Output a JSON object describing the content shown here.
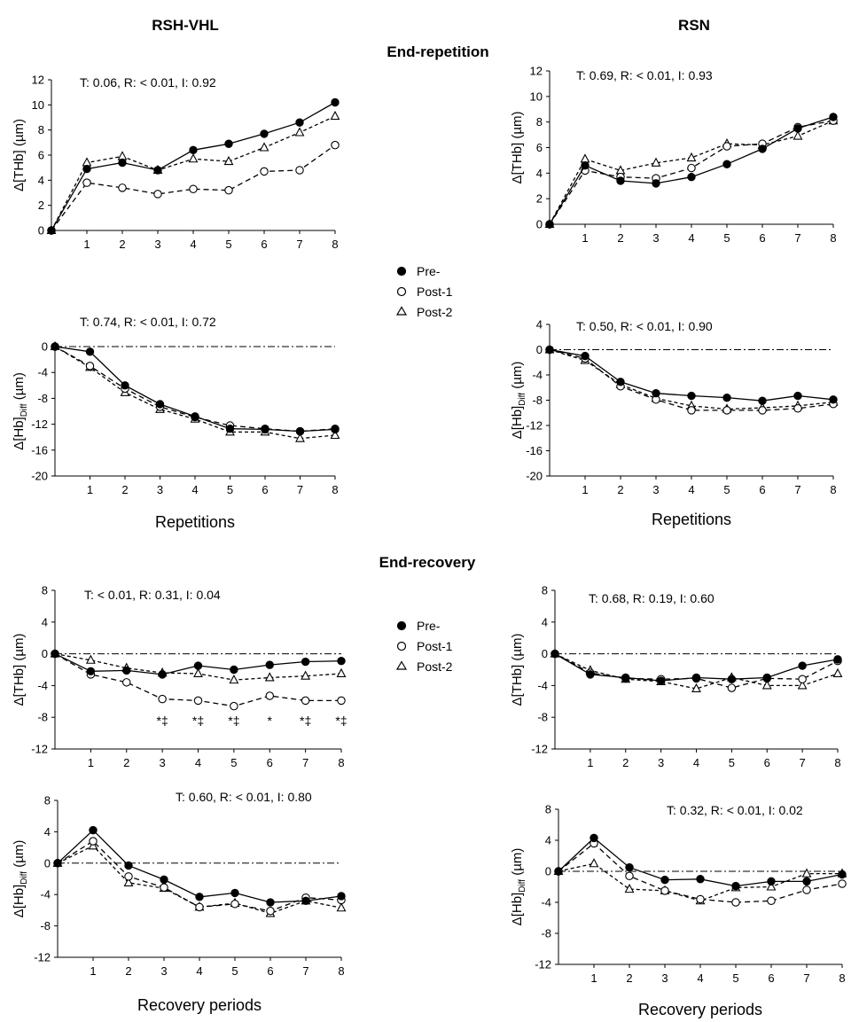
{
  "headers": {
    "col_left": "RSH-VHL",
    "col_right": "RSN",
    "section_top": "End-repetition",
    "section_bottom": "End-recovery"
  },
  "legend": {
    "pre": "Pre-",
    "post1": "Post-1",
    "post2": "Post-2"
  },
  "y_labels": {
    "thb_main": "Δ[THb] (µm)",
    "hbdiff_main": "Δ[Hb]",
    "hbdiff_sub": "Diff",
    "hbdiff_tail": " (µm)"
  },
  "chart_data": [
    {
      "id": "p1",
      "type": "line",
      "title": "End-repetition RSH-VHL Δ[THb]",
      "stats": "T: 0.06, R: < 0.01, I: 0.92",
      "xlabel": "",
      "ylabel": "Δ[THb] (µm)",
      "x": [
        0,
        1,
        2,
        3,
        4,
        5,
        6,
        7,
        8
      ],
      "xticks": [
        1,
        2,
        3,
        4,
        5,
        6,
        7,
        8
      ],
      "ylim": [
        0,
        12
      ],
      "yticks": [
        0,
        2,
        4,
        6,
        8,
        10,
        12
      ],
      "refline": false,
      "series": [
        {
          "name": "Pre-",
          "values": [
            0,
            4.9,
            5.4,
            4.8,
            6.4,
            6.9,
            7.7,
            8.6,
            10.2
          ]
        },
        {
          "name": "Post-1",
          "values": [
            0,
            3.8,
            3.4,
            2.9,
            3.3,
            3.2,
            4.7,
            4.8,
            6.8
          ]
        },
        {
          "name": "Post-2",
          "values": [
            0,
            5.4,
            5.9,
            4.8,
            5.7,
            5.5,
            6.6,
            7.8,
            9.1
          ]
        }
      ],
      "annotations": []
    },
    {
      "id": "p2",
      "type": "line",
      "title": "End-repetition RSN Δ[THb]",
      "stats": "T: 0.69, R: < 0.01, I: 0.93",
      "xlabel": "",
      "ylabel": "Δ[THb] (µm)",
      "x": [
        0,
        1,
        2,
        3,
        4,
        5,
        6,
        7,
        8
      ],
      "xticks": [
        1,
        2,
        3,
        4,
        5,
        6,
        7,
        8
      ],
      "ylim": [
        0,
        12
      ],
      "yticks": [
        0,
        2,
        4,
        6,
        8,
        10,
        12
      ],
      "refline": false,
      "series": [
        {
          "name": "Pre-",
          "values": [
            0,
            4.6,
            3.4,
            3.2,
            3.7,
            4.7,
            5.9,
            7.5,
            8.4
          ]
        },
        {
          "name": "Post-1",
          "values": [
            0,
            4.2,
            3.7,
            3.6,
            4.4,
            6.1,
            6.3,
            7.6,
            8.1
          ]
        },
        {
          "name": "Post-2",
          "values": [
            0,
            5.1,
            4.2,
            4.8,
            5.2,
            6.3,
            6.2,
            6.9,
            8.1
          ]
        }
      ],
      "annotations": []
    },
    {
      "id": "p3",
      "type": "line",
      "title": "End-repetition RSH-VHL Δ[Hb]Diff",
      "stats": "T: 0.74, R: < 0.01, I: 0.72",
      "xlabel": "Repetitions",
      "ylabel": "Δ[Hb]Diff (µm)",
      "x": [
        0,
        1,
        2,
        3,
        4,
        5,
        6,
        7,
        8
      ],
      "xticks": [
        1,
        2,
        3,
        4,
        5,
        6,
        7,
        8
      ],
      "ylim": [
        -20,
        0
      ],
      "yticks": [
        0,
        -4,
        -8,
        -12,
        -16,
        -20
      ],
      "refline": true,
      "series": [
        {
          "name": "Pre-",
          "values": [
            0,
            -0.8,
            -6.0,
            -8.9,
            -10.8,
            -12.7,
            -12.8,
            -13.1,
            -12.8
          ]
        },
        {
          "name": "Post-1",
          "values": [
            0,
            -3.0,
            -6.5,
            -9.3,
            -10.9,
            -12.2,
            -12.7,
            -13.1,
            -12.7
          ]
        },
        {
          "name": "Post-2",
          "values": [
            0,
            -3.2,
            -7.1,
            -9.7,
            -11.2,
            -13.2,
            -13.2,
            -14.2,
            -13.7
          ]
        }
      ],
      "annotations": []
    },
    {
      "id": "p4",
      "type": "line",
      "title": "End-repetition RSN Δ[Hb]Diff",
      "stats": "T: 0.50, R: < 0.01, I: 0.90",
      "xlabel": "Repetitions",
      "ylabel": "Δ[Hb]Diff (µm)",
      "x": [
        0,
        1,
        2,
        3,
        4,
        5,
        6,
        7,
        8
      ],
      "xticks": [
        1,
        2,
        3,
        4,
        5,
        6,
        7,
        8
      ],
      "ylim": [
        -20,
        4
      ],
      "yticks": [
        4,
        0,
        -4,
        -8,
        -12,
        -16,
        -20
      ],
      "refline": true,
      "series": [
        {
          "name": "Pre-",
          "values": [
            0,
            -1.0,
            -5.1,
            -6.9,
            -7.3,
            -7.6,
            -8.1,
            -7.3,
            -7.9
          ]
        },
        {
          "name": "Post-1",
          "values": [
            0,
            -1.4,
            -5.8,
            -7.9,
            -9.6,
            -9.6,
            -9.6,
            -9.3,
            -8.6
          ]
        },
        {
          "name": "Post-2",
          "values": [
            0,
            -1.7,
            -5.5,
            -7.7,
            -8.9,
            -9.4,
            -9.2,
            -8.9,
            -8.3
          ]
        }
      ],
      "annotations": []
    },
    {
      "id": "p5",
      "type": "line",
      "title": "End-recovery RSH-VHL Δ[THb]",
      "stats": "T: < 0.01, R: 0.31, I: 0.04",
      "xlabel": "",
      "ylabel": "Δ[THb] (µm)",
      "x": [
        0,
        1,
        2,
        3,
        4,
        5,
        6,
        7,
        8
      ],
      "xticks": [
        1,
        2,
        3,
        4,
        5,
        6,
        7,
        8
      ],
      "ylim": [
        -12,
        8
      ],
      "yticks": [
        8,
        4,
        0,
        -4,
        -8,
        -12
      ],
      "refline": true,
      "series": [
        {
          "name": "Pre-",
          "values": [
            0,
            -2.2,
            -2.1,
            -2.6,
            -1.5,
            -2.0,
            -1.4,
            -1.0,
            -0.9
          ]
        },
        {
          "name": "Post-1",
          "values": [
            0,
            -2.6,
            -3.6,
            -5.7,
            -5.9,
            -6.6,
            -5.3,
            -5.9,
            -5.9
          ]
        },
        {
          "name": "Post-2",
          "values": [
            0,
            -0.8,
            -1.8,
            -2.4,
            -2.5,
            -3.3,
            -3.0,
            -2.8,
            -2.5
          ]
        }
      ],
      "annotations": [
        {
          "x": 3,
          "text": "*‡"
        },
        {
          "x": 4,
          "text": "*‡"
        },
        {
          "x": 5,
          "text": "*‡"
        },
        {
          "x": 6,
          "text": "*"
        },
        {
          "x": 7,
          "text": "*‡"
        },
        {
          "x": 8,
          "text": "*‡"
        }
      ]
    },
    {
      "id": "p6",
      "type": "line",
      "title": "End-recovery RSN Δ[THb]",
      "stats": "T: 0.68, R: 0.19, I: 0.60",
      "xlabel": "",
      "ylabel": "Δ[THb] (µm)",
      "x": [
        0,
        1,
        2,
        3,
        4,
        5,
        6,
        7,
        8
      ],
      "xticks": [
        1,
        2,
        3,
        4,
        5,
        6,
        7,
        8
      ],
      "ylim": [
        -12,
        8
      ],
      "yticks": [
        8,
        4,
        0,
        -4,
        -8,
        -12
      ],
      "refline": true,
      "series": [
        {
          "name": "Pre-",
          "values": [
            0,
            -2.6,
            -3.0,
            -3.4,
            -3.0,
            -3.2,
            -3.0,
            -1.5,
            -0.7
          ]
        },
        {
          "name": "Post-1",
          "values": [
            0,
            -2.4,
            -3.1,
            -3.2,
            -3.1,
            -4.3,
            -3.1,
            -3.2,
            -0.9
          ]
        },
        {
          "name": "Post-2",
          "values": [
            0,
            -2.1,
            -3.2,
            -3.5,
            -4.4,
            -3.0,
            -4.0,
            -4.0,
            -2.5
          ]
        }
      ],
      "annotations": []
    },
    {
      "id": "p7",
      "type": "line",
      "title": "End-recovery RSH-VHL Δ[Hb]Diff",
      "stats": "T: 0.60, R: < 0.01, I: 0.80",
      "xlabel": "Recovery periods",
      "ylabel": "Δ[Hb]Diff (µm)",
      "x": [
        0,
        1,
        2,
        3,
        4,
        5,
        6,
        7,
        8
      ],
      "xticks": [
        1,
        2,
        3,
        4,
        5,
        6,
        7,
        8
      ],
      "ylim": [
        -12,
        8
      ],
      "yticks": [
        8,
        4,
        0,
        -4,
        -8,
        -12
      ],
      "refline": true,
      "series": [
        {
          "name": "Pre-",
          "values": [
            0,
            4.2,
            -0.3,
            -2.1,
            -4.3,
            -3.8,
            -5.0,
            -4.8,
            -4.2
          ]
        },
        {
          "name": "Post-1",
          "values": [
            0,
            2.8,
            -1.7,
            -3.1,
            -5.6,
            -5.2,
            -6.1,
            -4.4,
            -4.7
          ]
        },
        {
          "name": "Post-2",
          "values": [
            0,
            2.2,
            -2.5,
            -3.2,
            -5.6,
            -5.1,
            -6.4,
            -4.8,
            -5.7
          ]
        }
      ],
      "annotations": []
    },
    {
      "id": "p8",
      "type": "line",
      "title": "End-recovery RSN Δ[Hb]Diff",
      "stats": "T: 0.32, R: < 0.01, I: 0.02",
      "xlabel": "Recovery periods",
      "ylabel": "Δ[Hb]Diff (µm)",
      "x": [
        0,
        1,
        2,
        3,
        4,
        5,
        6,
        7,
        8
      ],
      "xticks": [
        1,
        2,
        3,
        4,
        5,
        6,
        7,
        8
      ],
      "ylim": [
        -12,
        8
      ],
      "yticks": [
        8,
        4,
        0,
        -4,
        -8,
        -12
      ],
      "refline": true,
      "series": [
        {
          "name": "Pre-",
          "values": [
            0,
            4.3,
            0.5,
            -1.1,
            -1.0,
            -1.9,
            -1.3,
            -1.3,
            -0.4
          ]
        },
        {
          "name": "Post-1",
          "values": [
            0,
            3.6,
            -0.6,
            -2.5,
            -3.6,
            -4.0,
            -3.8,
            -2.4,
            -1.6
          ]
        },
        {
          "name": "Post-2",
          "values": [
            0,
            1.0,
            -2.3,
            -2.5,
            -3.8,
            -2.1,
            -2.0,
            -0.3,
            -0.3
          ]
        }
      ],
      "annotations": []
    }
  ]
}
